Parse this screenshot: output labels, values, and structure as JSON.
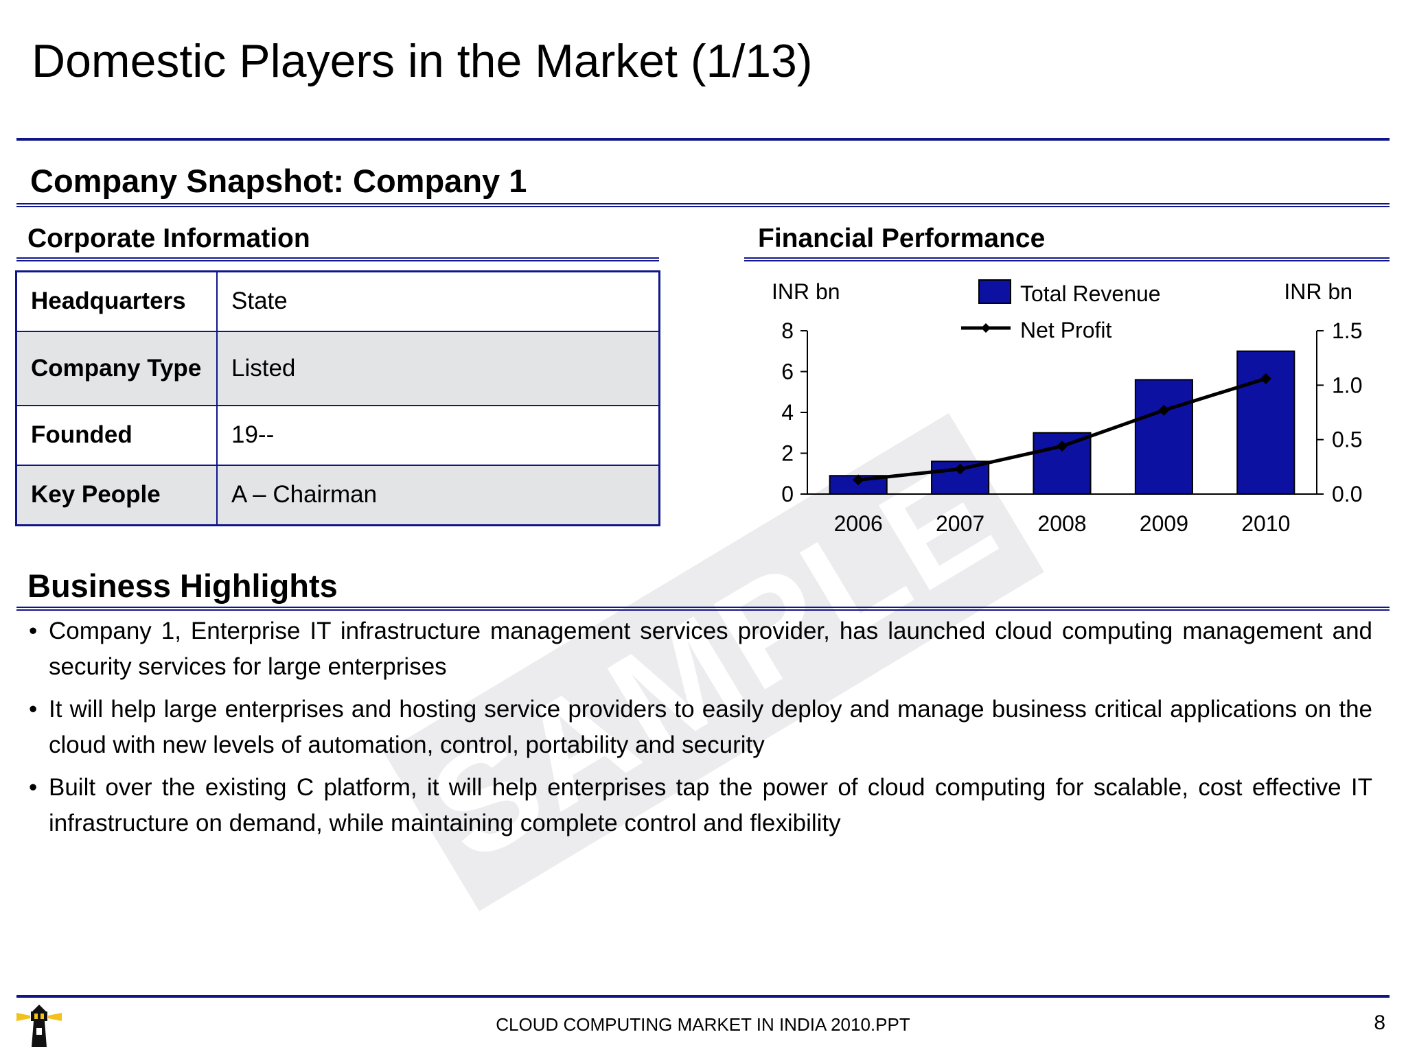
{
  "title": "Domestic Players in the Market (1/13)",
  "snapshot_heading": "Company Snapshot: Company 1",
  "corporate": {
    "heading": "Corporate Information",
    "rows": [
      {
        "label": "Headquarters",
        "value": "State"
      },
      {
        "label": "Company Type",
        "value": "Listed"
      },
      {
        "label": "Founded",
        "value": "19--"
      },
      {
        "label": "Key People",
        "value": "A  – Chairman"
      }
    ]
  },
  "financial": {
    "heading": "Financial Performance"
  },
  "chart_data": {
    "type": "bar",
    "categories": [
      "2006",
      "2007",
      "2008",
      "2009",
      "2010"
    ],
    "series": [
      {
        "name": "Total Revenue",
        "type": "bar",
        "axis": "left",
        "values": [
          0.9,
          1.6,
          3.0,
          5.6,
          7.0
        ]
      },
      {
        "name": "Net Profit",
        "type": "line",
        "axis": "right",
        "values": [
          0.13,
          0.23,
          0.44,
          0.77,
          1.06
        ]
      }
    ],
    "ylabel_left": "INR bn",
    "ylabel_right": "INR bn",
    "ylim_left": [
      0,
      8
    ],
    "ylim_right": [
      0,
      1.5
    ],
    "yticks_left": [
      "0",
      "2",
      "4",
      "6",
      "8"
    ],
    "yticks_right": [
      "0.0",
      "0.5",
      "1.0",
      "1.5"
    ],
    "colors": {
      "bar": "#0c11a2",
      "line": "#000000"
    },
    "legend_position": "top-center",
    "grid": false
  },
  "highlights": {
    "heading": "Business Highlights",
    "bullet_symbol": "•",
    "items": [
      "Company 1, Enterprise IT infrastructure management services provider, has launched cloud computing management and security services for large enterprises",
      "It will help large enterprises and hosting service providers to easily deploy and manage business critical applications on the cloud with new levels of automation, control, portability and security",
      "Built over the existing C platform, it will help enterprises tap the power of cloud computing for scalable, cost effective IT infrastructure on demand, while maintaining complete control and flexibility"
    ]
  },
  "watermark": "SAMPLE",
  "footer": {
    "text": "CLOUD COMPUTING MARKET IN INDIA 2010.PPT",
    "page": "8",
    "logo_icon": "lighthouse-icon"
  }
}
